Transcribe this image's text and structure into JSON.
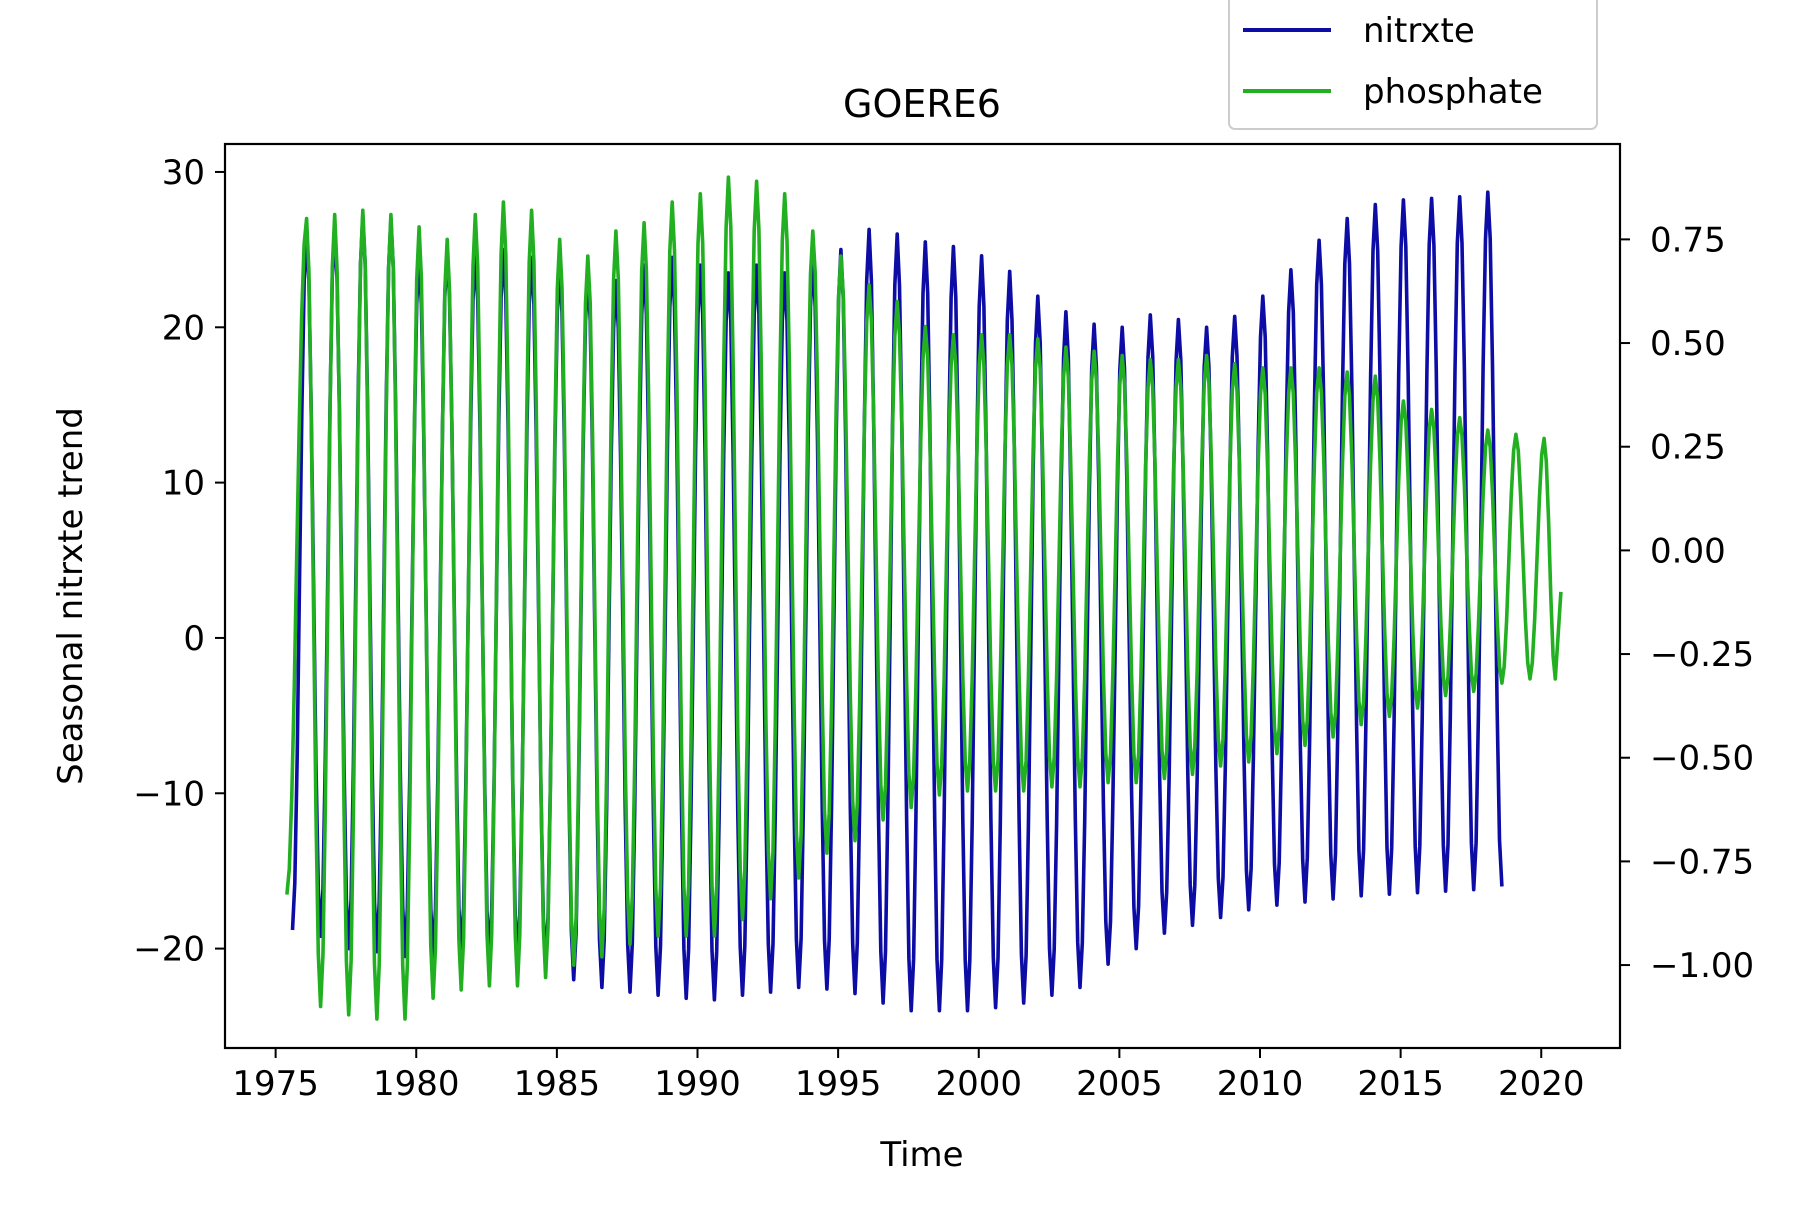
{
  "chart_data": {
    "type": "line",
    "title": "GOERE6",
    "xlabel": "Time",
    "ylabel": "Seasonal nitrxte trend",
    "xlim": [
      1973.2,
      2022.8
    ],
    "ylim_left": [
      -26.4,
      31.8
    ],
    "ylim_right": [
      -1.2,
      0.98
    ],
    "x_ticks": [
      1975,
      1980,
      1985,
      1990,
      1995,
      2000,
      2005,
      2010,
      2015,
      2020
    ],
    "x_tick_labels": [
      "1975",
      "1980",
      "1985",
      "1990",
      "1995",
      "2000",
      "2005",
      "2010",
      "2015",
      "2020"
    ],
    "y_ticks_left": [
      30,
      20,
      10,
      0,
      -10,
      -20
    ],
    "y_tick_labels_left": [
      "30",
      "20",
      "10",
      "0",
      "−10",
      "−20"
    ],
    "y_ticks_right": [
      0.75,
      0.5,
      0.25,
      0.0,
      -0.25,
      -0.5,
      -0.75,
      -1.0
    ],
    "y_tick_labels_right": [
      "0.75",
      "0.50",
      "0.25",
      "0.00",
      "−0.25",
      "−0.50",
      "−0.75",
      "−1.00"
    ],
    "legend": {
      "position": "top-right",
      "entries": [
        "nitrxte",
        "phosphate"
      ]
    },
    "grid": false,
    "series": [
      {
        "name": "nitrxte",
        "axis": "left",
        "color": "#0d0da6",
        "start": 1975.5,
        "end": 2018.9,
        "maxima": [
          [
            1976.1,
            26.0
          ],
          [
            1977.1,
            26.3
          ],
          [
            1978.1,
            27.2
          ],
          [
            1979.1,
            27.0
          ],
          [
            1980.1,
            24.5
          ],
          [
            1981.1,
            25.0
          ],
          [
            1982.1,
            24.8
          ],
          [
            1983.1,
            25.0
          ],
          [
            1984.1,
            24.5
          ],
          [
            1985.1,
            24.0
          ],
          [
            1986.1,
            23.5
          ],
          [
            1987.1,
            23.0
          ],
          [
            1988.1,
            24.0
          ],
          [
            1989.1,
            24.5
          ],
          [
            1990.1,
            24.0
          ],
          [
            1991.1,
            23.5
          ],
          [
            1992.1,
            24.0
          ],
          [
            1993.1,
            23.5
          ],
          [
            1994.1,
            24.5
          ],
          [
            1995.1,
            25.0
          ],
          [
            1996.1,
            26.3
          ],
          [
            1997.1,
            26.0
          ],
          [
            1998.1,
            25.5
          ],
          [
            1999.1,
            25.2
          ],
          [
            2000.1,
            24.6
          ],
          [
            2001.1,
            23.6
          ],
          [
            2002.1,
            22.0
          ],
          [
            2003.1,
            21.0
          ],
          [
            2004.1,
            20.2
          ],
          [
            2005.1,
            20.0
          ],
          [
            2006.1,
            20.8
          ],
          [
            2007.1,
            20.5
          ],
          [
            2008.1,
            20.0
          ],
          [
            2009.1,
            20.7
          ],
          [
            2010.1,
            22.0
          ],
          [
            2011.1,
            23.7
          ],
          [
            2012.1,
            25.6
          ],
          [
            2013.1,
            27.0
          ],
          [
            2014.1,
            27.9
          ],
          [
            2015.1,
            28.2
          ],
          [
            2016.1,
            28.3
          ],
          [
            2017.1,
            28.4
          ],
          [
            2018.1,
            28.7
          ]
        ],
        "minima": [
          [
            1975.6,
            -18.8
          ],
          [
            1976.6,
            -19.2
          ],
          [
            1977.6,
            -20.0
          ],
          [
            1978.6,
            -20.2
          ],
          [
            1979.6,
            -20.5
          ],
          [
            1980.6,
            -20.5
          ],
          [
            1981.6,
            -20.4
          ],
          [
            1982.6,
            -20.6
          ],
          [
            1983.6,
            -20.8
          ],
          [
            1984.6,
            -21.0
          ],
          [
            1985.6,
            -22.0
          ],
          [
            1986.6,
            -22.5
          ],
          [
            1987.6,
            -22.8
          ],
          [
            1988.6,
            -23.0
          ],
          [
            1989.6,
            -23.2
          ],
          [
            1990.6,
            -23.3
          ],
          [
            1991.6,
            -23.0
          ],
          [
            1992.6,
            -22.8
          ],
          [
            1993.6,
            -22.5
          ],
          [
            1994.6,
            -22.6
          ],
          [
            1995.6,
            -22.9
          ],
          [
            1996.6,
            -23.5
          ],
          [
            1997.6,
            -24.0
          ],
          [
            1998.6,
            -24.0
          ],
          [
            1999.6,
            -24.0
          ],
          [
            2000.6,
            -23.8
          ],
          [
            2001.6,
            -23.5
          ],
          [
            2002.6,
            -23.0
          ],
          [
            2003.6,
            -22.5
          ],
          [
            2004.6,
            -21.0
          ],
          [
            2005.6,
            -20.0
          ],
          [
            2006.6,
            -19.0
          ],
          [
            2007.6,
            -18.5
          ],
          [
            2008.6,
            -18.0
          ],
          [
            2009.6,
            -17.5
          ],
          [
            2010.6,
            -17.2
          ],
          [
            2011.6,
            -17.0
          ],
          [
            2012.6,
            -16.8
          ],
          [
            2013.6,
            -16.6
          ],
          [
            2014.6,
            -16.5
          ],
          [
            2015.6,
            -16.4
          ],
          [
            2016.6,
            -16.3
          ],
          [
            2017.6,
            -16.2
          ],
          [
            2018.6,
            -16.0
          ]
        ]
      },
      {
        "name": "phosphate",
        "axis": "right",
        "color": "#22b022",
        "start": 1975.4,
        "end": 2020.7,
        "maxima": [
          [
            1976.1,
            0.8
          ],
          [
            1977.1,
            0.81
          ],
          [
            1978.1,
            0.82
          ],
          [
            1979.1,
            0.81
          ],
          [
            1980.1,
            0.78
          ],
          [
            1981.1,
            0.75
          ],
          [
            1982.1,
            0.81
          ],
          [
            1983.1,
            0.84
          ],
          [
            1984.1,
            0.82
          ],
          [
            1985.1,
            0.75
          ],
          [
            1986.1,
            0.71
          ],
          [
            1987.1,
            0.77
          ],
          [
            1988.1,
            0.79
          ],
          [
            1989.1,
            0.84
          ],
          [
            1990.1,
            0.86
          ],
          [
            1991.1,
            0.9
          ],
          [
            1992.1,
            0.89
          ],
          [
            1993.1,
            0.86
          ],
          [
            1994.1,
            0.77
          ],
          [
            1995.1,
            0.71
          ],
          [
            1996.1,
            0.64
          ],
          [
            1997.1,
            0.6
          ],
          [
            1998.1,
            0.54
          ],
          [
            1999.1,
            0.52
          ],
          [
            2000.1,
            0.52
          ],
          [
            2001.1,
            0.52
          ],
          [
            2002.1,
            0.51
          ],
          [
            2003.1,
            0.49
          ],
          [
            2004.1,
            0.48
          ],
          [
            2005.1,
            0.47
          ],
          [
            2006.1,
            0.46
          ],
          [
            2007.1,
            0.46
          ],
          [
            2008.1,
            0.47
          ],
          [
            2009.1,
            0.45
          ],
          [
            2010.1,
            0.44
          ],
          [
            2011.1,
            0.44
          ],
          [
            2012.1,
            0.44
          ],
          [
            2013.1,
            0.43
          ],
          [
            2014.1,
            0.42
          ],
          [
            2015.1,
            0.36
          ],
          [
            2016.1,
            0.34
          ],
          [
            2017.1,
            0.32
          ],
          [
            2018.1,
            0.29
          ],
          [
            2019.1,
            0.28
          ],
          [
            2020.1,
            0.27
          ]
        ],
        "minima": [
          [
            1975.4,
            -0.83
          ],
          [
            1976.6,
            -1.1
          ],
          [
            1977.6,
            -1.12
          ],
          [
            1978.6,
            -1.13
          ],
          [
            1979.6,
            -1.13
          ],
          [
            1980.6,
            -1.08
          ],
          [
            1981.6,
            -1.06
          ],
          [
            1982.6,
            -1.05
          ],
          [
            1983.6,
            -1.05
          ],
          [
            1984.6,
            -1.03
          ],
          [
            1985.6,
            -1.0
          ],
          [
            1986.6,
            -0.98
          ],
          [
            1987.6,
            -0.95
          ],
          [
            1988.6,
            -0.93
          ],
          [
            1989.6,
            -0.93
          ],
          [
            1990.6,
            -0.93
          ],
          [
            1991.6,
            -0.89
          ],
          [
            1992.6,
            -0.84
          ],
          [
            1993.6,
            -0.79
          ],
          [
            1994.6,
            -0.73
          ],
          [
            1995.6,
            -0.7
          ],
          [
            1996.6,
            -0.65
          ],
          [
            1997.6,
            -0.62
          ],
          [
            1998.6,
            -0.59
          ],
          [
            1999.6,
            -0.58
          ],
          [
            2000.6,
            -0.58
          ],
          [
            2001.6,
            -0.58
          ],
          [
            2002.6,
            -0.57
          ],
          [
            2003.6,
            -0.57
          ],
          [
            2004.6,
            -0.56
          ],
          [
            2005.6,
            -0.56
          ],
          [
            2006.6,
            -0.55
          ],
          [
            2007.6,
            -0.54
          ],
          [
            2008.6,
            -0.52
          ],
          [
            2009.6,
            -0.51
          ],
          [
            2010.6,
            -0.49
          ],
          [
            2011.6,
            -0.47
          ],
          [
            2012.6,
            -0.45
          ],
          [
            2013.6,
            -0.42
          ],
          [
            2014.6,
            -0.4
          ],
          [
            2015.6,
            -0.38
          ],
          [
            2016.6,
            -0.35
          ],
          [
            2017.6,
            -0.34
          ],
          [
            2018.6,
            -0.32
          ],
          [
            2019.6,
            -0.31
          ],
          [
            2020.5,
            -0.31
          ],
          [
            2020.7,
            -0.1
          ]
        ]
      }
    ]
  }
}
